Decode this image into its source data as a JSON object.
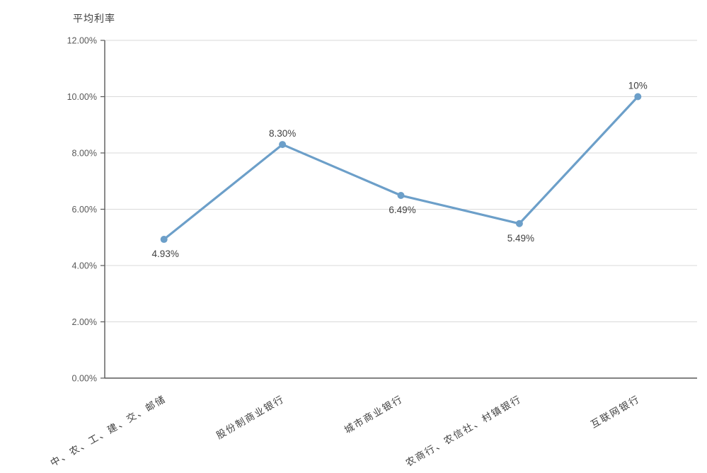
{
  "chart_data": {
    "type": "line",
    "title": "平均利率",
    "categories": [
      "中、农、工、建、交、邮储",
      "股份制商业银行",
      "城市商业银行",
      "农商行、农信社、村镇银行",
      "互联网银行"
    ],
    "values": [
      4.93,
      8.3,
      6.49,
      5.49,
      10
    ],
    "data_labels": [
      "4.93%",
      "8.30%",
      "6.49%",
      "5.49%",
      "10%"
    ],
    "data_label_position": [
      "below",
      "above",
      "below",
      "below",
      "above"
    ],
    "y_ticks": [
      "0.00%",
      "2.00%",
      "4.00%",
      "6.00%",
      "8.00%",
      "10.00%",
      "12.00%"
    ],
    "ylim": [
      0,
      12
    ],
    "y_tick_step": 2,
    "grid": true,
    "legend": "none",
    "xlabel": "",
    "ylabel": "平均利率",
    "colors": {
      "line": "#6C9FC9",
      "marker": "#6C9FC9",
      "gridline": "#D9D9D9",
      "axis": "#595959",
      "tick_label": "#595959",
      "data_label": "#404040",
      "category_label": "#404040",
      "background": "#FFFFFF"
    }
  }
}
